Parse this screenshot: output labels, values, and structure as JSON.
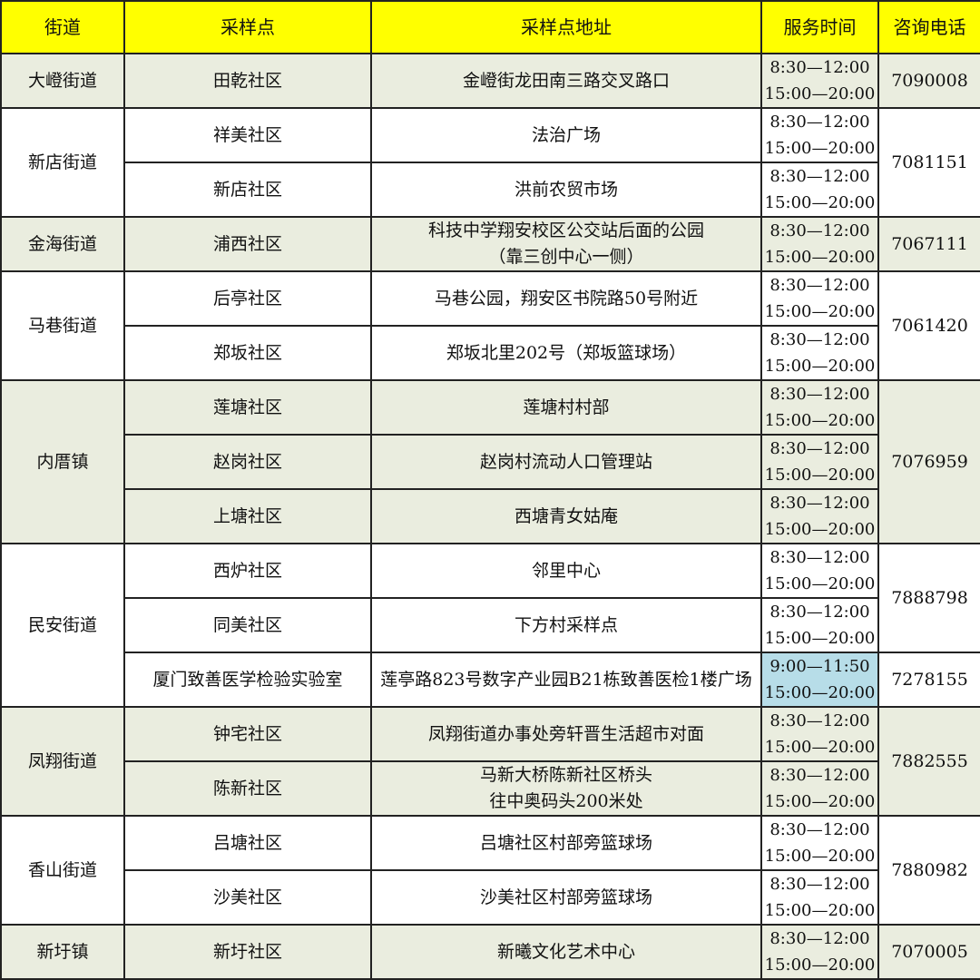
{
  "headers": [
    "街道",
    "采样点",
    "采样点地址",
    "服务时间",
    "咨询电话"
  ],
  "colors": {
    "header": "#FFFF00",
    "shaded": "#EAEDDF",
    "highlight": "#B7DDE8"
  },
  "groups": [
    {
      "street": "大嶝街道",
      "phone": "7090008",
      "shaded": true,
      "sites": [
        {
          "site": "田乾社区",
          "address": [
            "金嶝街龙田南三路交叉路口"
          ],
          "time": [
            "8:30—12:00",
            "15:00—20:00"
          ]
        }
      ]
    },
    {
      "street": "新店街道",
      "phone": "7081151",
      "shaded": false,
      "sites": [
        {
          "site": "祥美社区",
          "address": [
            "法治广场"
          ],
          "time": [
            "8:30—12:00",
            "15:00—20:00"
          ]
        },
        {
          "site": "新店社区",
          "address": [
            "洪前农贸市场"
          ],
          "time": [
            "8:30—12:00",
            "15:00—20:00"
          ]
        }
      ]
    },
    {
      "street": "金海街道",
      "phone": "7067111",
      "shaded": true,
      "sites": [
        {
          "site": "浦西社区",
          "address": [
            "科技中学翔安校区公交站后面的公园",
            "（靠三创中心一侧）"
          ],
          "time": [
            "8:30—12:00",
            "15:00—20:00"
          ]
        }
      ]
    },
    {
      "street": "马巷街道",
      "phone": "7061420",
      "shaded": false,
      "sites": [
        {
          "site": "后亭社区",
          "address": [
            "马巷公园，翔安区书院路50号附近"
          ],
          "time": [
            "8:30—12:00",
            "15:00—20:00"
          ]
        },
        {
          "site": "郑坂社区",
          "address": [
            "郑坂北里202号（郑坂篮球场）"
          ],
          "time": [
            "8:30—12:00",
            "15:00—20:00"
          ]
        }
      ]
    },
    {
      "street": "内厝镇",
      "phone": "7076959",
      "shaded": true,
      "sites": [
        {
          "site": "莲塘社区",
          "address": [
            "莲塘村村部"
          ],
          "time": [
            "8:30—12:00",
            "15:00—20:00"
          ]
        },
        {
          "site": "赵岗社区",
          "address": [
            "赵岗村流动人口管理站"
          ],
          "time": [
            "8:30—12:00",
            "15:00—20:00"
          ]
        },
        {
          "site": "上塘社区",
          "address": [
            "西塘青女姑庵"
          ],
          "time": [
            "8:30—12:00",
            "15:00—20:00"
          ]
        }
      ]
    },
    {
      "street": "民安街道",
      "phone": "7888798",
      "shaded": false,
      "sites": [
        {
          "site": "西炉社区",
          "address": [
            "邻里中心"
          ],
          "time": [
            "8:30—12:00",
            "15:00—20:00"
          ]
        },
        {
          "site": "同美社区",
          "address": [
            "下方村采样点"
          ],
          "time": [
            "8:30—12:00",
            "15:00—20:00"
          ]
        },
        {
          "site": "厦门致善医学检验实验室",
          "address": [
            "莲亭路823号数字产业园B21栋致善医检1楼广场"
          ],
          "time": [
            "9:00—11:50",
            "15:00—20:00"
          ],
          "highlight": true,
          "phone": "7278155"
        }
      ]
    },
    {
      "street": "凤翔街道",
      "phone": "7882555",
      "shaded": true,
      "sites": [
        {
          "site": "钟宅社区",
          "address": [
            "凤翔街道办事处旁轩晋生活超市对面"
          ],
          "time": [
            "8:30—12:00",
            "15:00—20:00"
          ]
        },
        {
          "site": "陈新社区",
          "address": [
            "马新大桥陈新社区桥头",
            "往中奥码头200米处"
          ],
          "time": [
            "8:30—12:00",
            "15:00—20:00"
          ]
        }
      ]
    },
    {
      "street": "香山街道",
      "phone": "7880982",
      "shaded": false,
      "sites": [
        {
          "site": "吕塘社区",
          "address": [
            "吕塘社区村部旁篮球场"
          ],
          "time": [
            "8:30—12:00",
            "15:00—20:00"
          ]
        },
        {
          "site": "沙美社区",
          "address": [
            "沙美社区村部旁篮球场"
          ],
          "time": [
            "8:30—12:00",
            "15:00—20:00"
          ]
        }
      ]
    },
    {
      "street": "新圩镇",
      "phone": "7070005",
      "shaded": true,
      "sites": [
        {
          "site": "新圩社区",
          "address": [
            "新曦文化艺术中心"
          ],
          "time": [
            "8:30—12:00",
            "15:00—20:00"
          ]
        }
      ]
    }
  ]
}
